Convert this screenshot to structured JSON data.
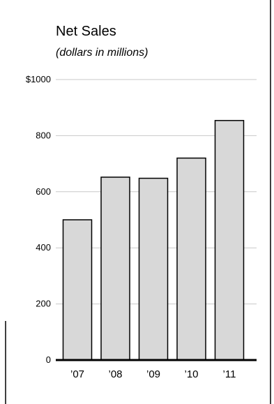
{
  "chart_data": {
    "type": "bar",
    "title": "Net Sales",
    "subtitle": "(dollars in millions)",
    "categories": [
      "’07",
      "’08",
      "’09",
      "’10",
      "’11"
    ],
    "values": [
      500,
      652,
      648,
      720,
      854
    ],
    "ylim": [
      0,
      1000
    ],
    "yticks": [
      {
        "value": 0,
        "label": "0"
      },
      {
        "value": 200,
        "label": "200"
      },
      {
        "value": 400,
        "label": "400"
      },
      {
        "value": 600,
        "label": "600"
      },
      {
        "value": 800,
        "label": "800"
      },
      {
        "value": 1000,
        "label": "$1000"
      }
    ],
    "grid": true,
    "bar_color": "#d8d8d8",
    "bar_stroke": "#000000"
  }
}
